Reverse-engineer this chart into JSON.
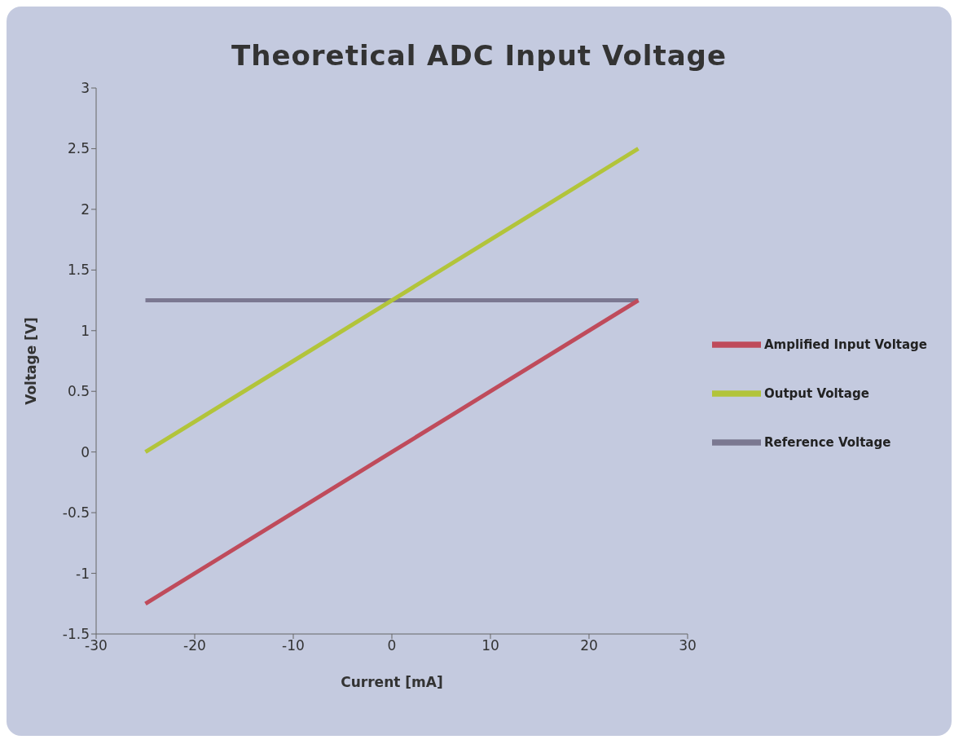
{
  "chart_data": {
    "type": "line",
    "title": "Theoretical ADC Input Voltage",
    "xlabel": "Current [mA]",
    "ylabel": "Voltage [V]",
    "series": [
      {
        "name": "Reference Voltage",
        "color": "#7b7891",
        "x": [
          -25,
          0,
          25
        ],
        "values": [
          1.25,
          1.25,
          1.25
        ]
      },
      {
        "name": "Amplified Input Voltage",
        "color": "#bf4b5b",
        "x": [
          -25,
          -10,
          0,
          10,
          25
        ],
        "values": [
          -1.25,
          -0.5,
          0,
          0.5,
          1.25
        ]
      },
      {
        "name": "Output Voltage",
        "color": "#b2c43a",
        "x": [
          -25,
          -10,
          0,
          10,
          25
        ],
        "values": [
          0,
          0.75,
          1.25,
          1.75,
          2.5
        ]
      }
    ],
    "xlim": [
      -30,
      30
    ],
    "xticks": [
      -30,
      -20,
      -10,
      0,
      10,
      20,
      30
    ],
    "ylim": [
      -1.5,
      3
    ],
    "yticks": [
      -1.5,
      -1,
      -0.5,
      0,
      0.5,
      1,
      1.5,
      2,
      2.5,
      3
    ],
    "grid": false,
    "legend": "right",
    "marker": "none",
    "line_style": "solid"
  }
}
